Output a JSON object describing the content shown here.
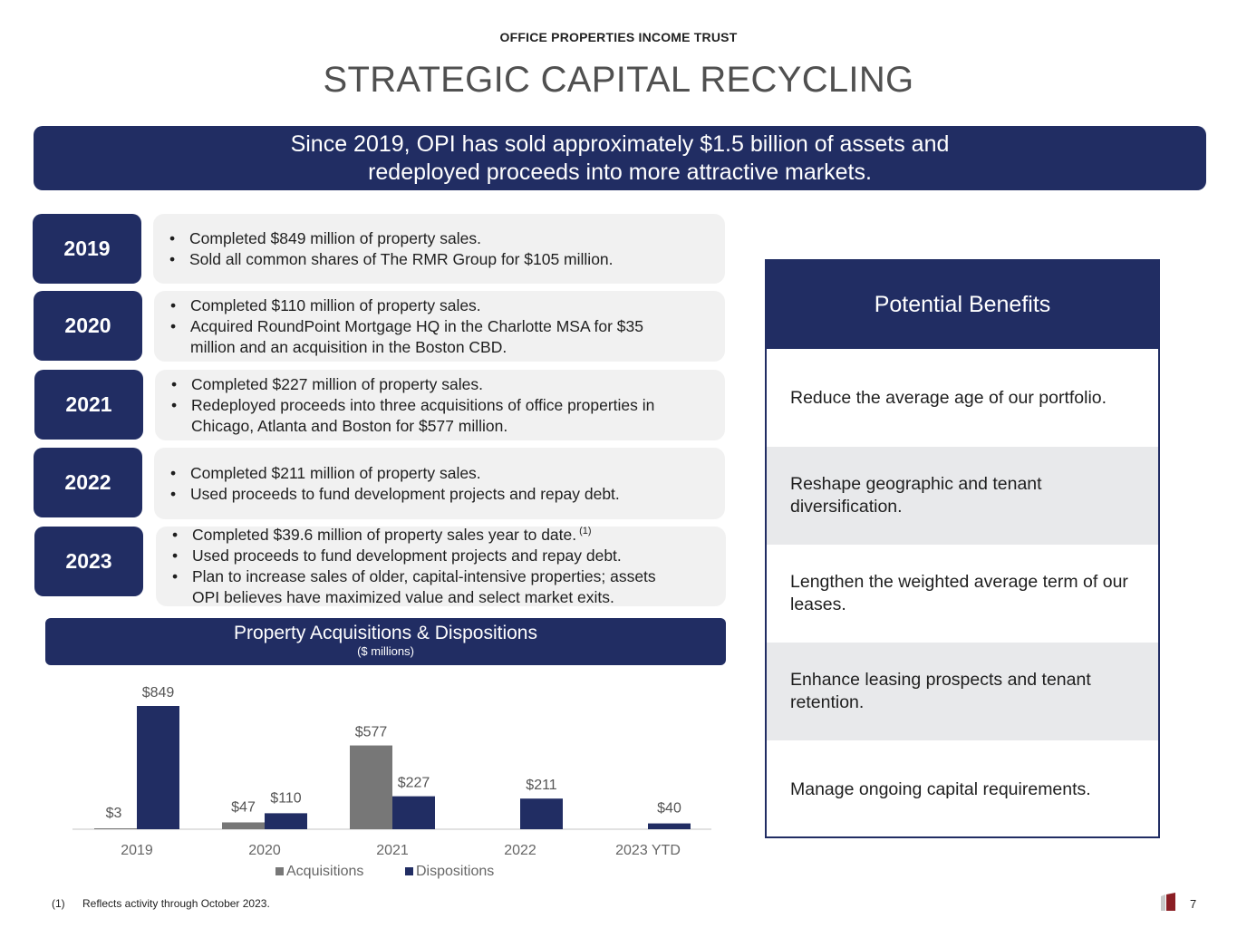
{
  "header": {
    "company": "OFFICE PROPERTIES INCOME TRUST",
    "title": "STRATEGIC CAPITAL RECYCLING"
  },
  "banner": {
    "line1": "Since 2019, OPI has sold approximately $1.5 billion of assets and",
    "line2": "redeployed proceeds into more attractive markets."
  },
  "timeline": [
    {
      "year": "2019",
      "bullets": [
        "Completed $849 million of property sales.",
        "Sold all common shares of The RMR Group for $105 million."
      ]
    },
    {
      "year": "2020",
      "bullets": [
        "Completed $110 million of property sales.",
        "Acquired RoundPoint Mortgage HQ in the Charlotte MSA for $35",
        "million and an acquisition in the Boston CBD."
      ]
    },
    {
      "year": "2021",
      "bullets": [
        "Completed $227 million of property sales.",
        "Redeployed proceeds into three acquisitions of office properties in",
        "Chicago, Atlanta and Boston for $577 million."
      ]
    },
    {
      "year": "2022",
      "bullets": [
        "Completed $211 million of property sales.",
        "Used proceeds to fund development projects and repay debt."
      ]
    },
    {
      "year": "2023",
      "bullets": [
        "Completed $39.6 million of property sales year to date.",
        "Used proceeds to fund development projects and repay debt.",
        "Plan to increase sales of older, capital-intensive properties; assets",
        "OPI believes have maximized value and select market exits."
      ],
      "footnote_marker": "(1)"
    }
  ],
  "chart_header": {
    "title": "Property Acquisitions & Dispositions",
    "subtitle": "($ millions)"
  },
  "chart_data": {
    "type": "bar",
    "title": "Property Acquisitions & Dispositions",
    "subtitle": "($ millions)",
    "categories": [
      "2019",
      "2020",
      "2021",
      "2022",
      "2023 YTD"
    ],
    "series": [
      {
        "name": "Acquisitions",
        "color": "#777777",
        "values": [
          3,
          47,
          577,
          null,
          null
        ],
        "labels": [
          "$3",
          "$47",
          "$577",
          "",
          ""
        ]
      },
      {
        "name": "Dispositions",
        "color": "#212d63",
        "values": [
          849,
          110,
          227,
          211,
          40
        ],
        "labels": [
          "$849",
          "$110",
          "$227",
          "$211",
          "$40"
        ]
      }
    ],
    "ylim": [
      0,
      849
    ],
    "grid": false,
    "legend": "bottom"
  },
  "benefits": {
    "title": "Potential Benefits",
    "items": [
      "Reduce the average age of our portfolio.",
      "Reshape geographic and tenant diversification.",
      "Lengthen the weighted average term of our leases.",
      "Enhance leasing prospects and tenant retention.",
      "Manage ongoing capital requirements."
    ]
  },
  "footnote": {
    "number": "(1)",
    "text": "Reflects activity through October 2023."
  },
  "page_number": "7",
  "colors": {
    "navy": "#212d63",
    "gray_bar": "#777777",
    "panel": "#f1f1f1",
    "shade": "#e8e9eb",
    "logo_red": "#8b1e24"
  }
}
